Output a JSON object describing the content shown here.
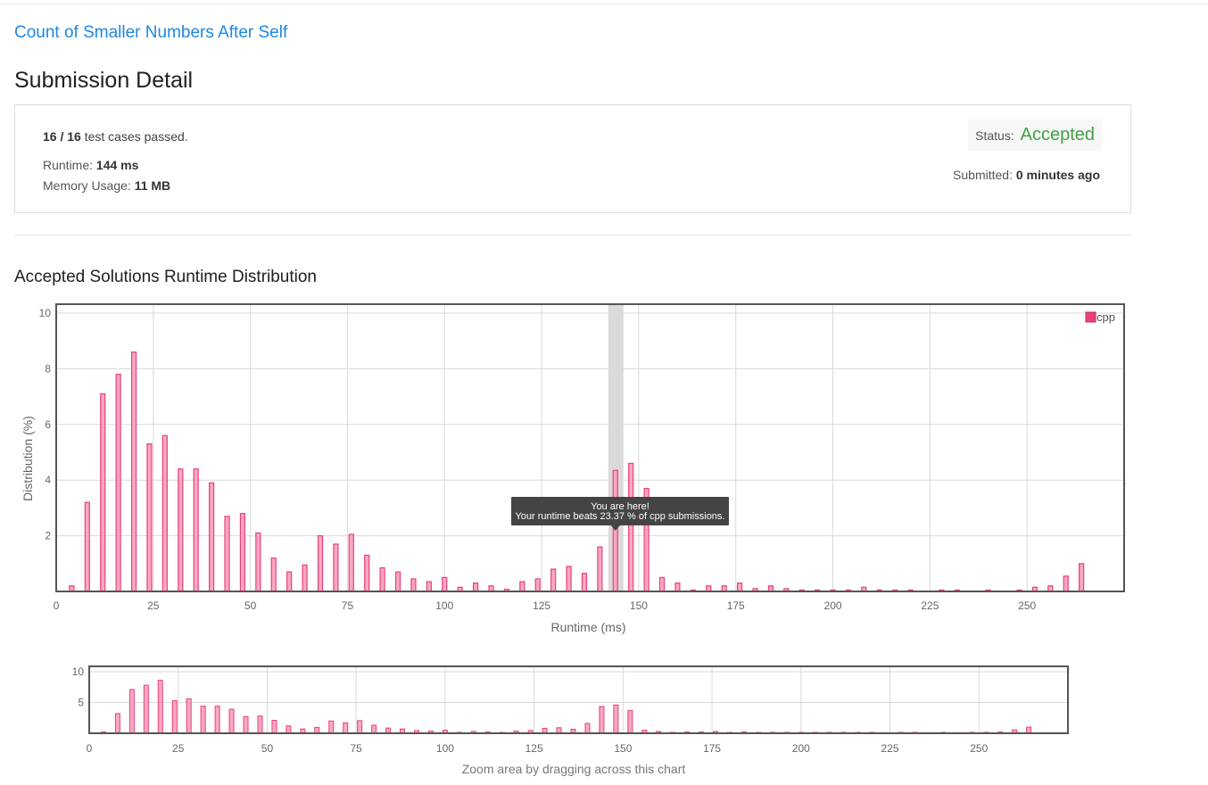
{
  "problem": {
    "title": "Count of Smaller Numbers After Self"
  },
  "page": {
    "title": "Submission Detail"
  },
  "submission": {
    "test_cases_count": "16 / 16",
    "test_cases_suffix": "test cases passed.",
    "runtime_label": "Runtime:",
    "runtime_value": "144 ms",
    "memory_label": "Memory Usage:",
    "memory_value": "11 MB",
    "status_label": "Status:",
    "status_value": "Accepted",
    "submitted_label": "Submitted:",
    "submitted_value": "0 minutes ago"
  },
  "distribution": {
    "title": "Accepted Solutions Runtime Distribution",
    "tooltip_line1": "You are here!",
    "tooltip_line2": "Your runtime beats 23.37 % of cpp submissions.",
    "zoom_hint": "Zoom area by dragging across this chart"
  },
  "chart_data": [
    {
      "type": "bar",
      "ylabel": "Distribution (%)",
      "xlabel": "Runtime (ms)",
      "xlim": [
        0,
        275
      ],
      "ylim": [
        0,
        10
      ],
      "x_ticks": [
        "0",
        "25",
        "50",
        "75",
        "100",
        "125",
        "150",
        "175",
        "200",
        "225",
        "250"
      ],
      "y_ticks": [
        "2",
        "4",
        "6",
        "8",
        "10"
      ],
      "legend": [
        "cpp"
      ],
      "legend_position": "top-right",
      "grid": true,
      "bar_color": "#ec407a",
      "highlight_x": 144,
      "series": [
        {
          "name": "cpp",
          "x": [
            4,
            8,
            12,
            16,
            20,
            24,
            28,
            32,
            36,
            40,
            44,
            48,
            52,
            56,
            60,
            64,
            68,
            72,
            76,
            80,
            84,
            88,
            92,
            96,
            100,
            104,
            108,
            112,
            116,
            120,
            124,
            128,
            132,
            136,
            140,
            144,
            148,
            152,
            156,
            160,
            164,
            168,
            172,
            176,
            180,
            184,
            188,
            192,
            196,
            200,
            204,
            208,
            212,
            216,
            220,
            228,
            232,
            240,
            248,
            252,
            256,
            260,
            264
          ],
          "values": [
            0.2,
            3.2,
            7.1,
            7.8,
            8.6,
            5.3,
            5.6,
            4.4,
            4.4,
            3.9,
            2.7,
            2.8,
            2.1,
            1.2,
            0.7,
            0.95,
            2.0,
            1.7,
            2.05,
            1.3,
            0.85,
            0.7,
            0.45,
            0.35,
            0.5,
            0.15,
            0.3,
            0.2,
            0.08,
            0.35,
            0.45,
            0.8,
            0.9,
            0.65,
            1.6,
            4.35,
            4.6,
            3.7,
            0.5,
            0.3,
            0.05,
            0.2,
            0.2,
            0.3,
            0.1,
            0.2,
            0.1,
            0.05,
            0.05,
            0.05,
            0.05,
            0.15,
            0.05,
            0.05,
            0.05,
            0.05,
            0.05,
            0.05,
            0.05,
            0.15,
            0.2,
            0.55,
            1.0
          ]
        }
      ]
    },
    {
      "type": "bar",
      "role": "navigator",
      "xlim": [
        0,
        275
      ],
      "ylim": [
        0,
        10
      ],
      "x_ticks": [
        "0",
        "25",
        "50",
        "75",
        "100",
        "125",
        "150",
        "175",
        "200",
        "225",
        "250"
      ],
      "y_ticks": [
        "5",
        "10"
      ],
      "grid": true,
      "bar_color": "#ec407a"
    }
  ]
}
